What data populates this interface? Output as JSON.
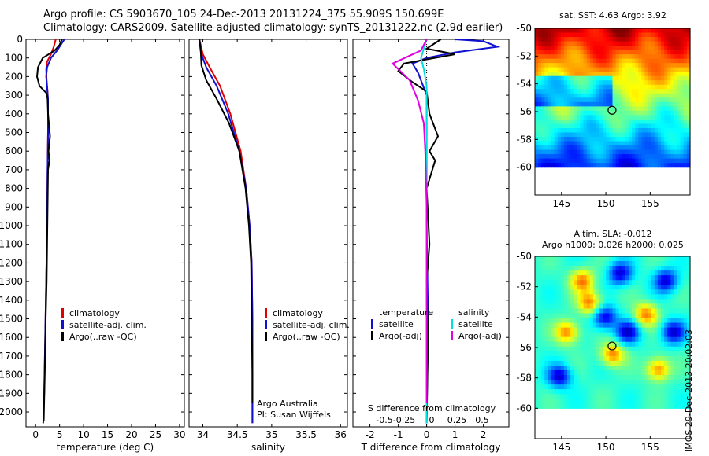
{
  "title_line1": "Argo profile: CS 5903670_105 24-Dec-2013 20131224_375 55.909S 150.699E",
  "title_line2": "Climatology: CARS2009. Satellite-adjusted climatology: synTS_20131222.nc (2.9d earlier)",
  "credit": "IMOS 29-Dec-2013 20:02:03",
  "colors": {
    "climatology": "#e00000",
    "satellite": "#1010d0",
    "argo": "#000000",
    "sat_salinity": "#00e0e0",
    "argo_salinity": "#e000e0"
  },
  "chart_data": [
    {
      "id": "temperature",
      "type": "line",
      "xlabel": "temperature (deg C)",
      "ylabel": "",
      "xlim": [
        -2,
        31
      ],
      "ylim": [
        2080,
        0
      ],
      "xticks": [
        0,
        5,
        10,
        15,
        20,
        25,
        30
      ],
      "yticks": [
        0,
        100,
        200,
        300,
        400,
        500,
        600,
        700,
        800,
        900,
        1000,
        1100,
        1200,
        1300,
        1400,
        1500,
        1600,
        1700,
        1800,
        1900,
        2000
      ],
      "legend": [
        "climatology",
        "satellite-adj. clim.",
        "Argo(..raw -QC)"
      ],
      "legend_position": "lower-right",
      "series": [
        {
          "name": "climatology",
          "color": "#e00000",
          "points": [
            [
              4.2,
              0
            ],
            [
              3.8,
              40
            ],
            [
              3.2,
              80
            ],
            [
              2.4,
              120
            ],
            [
              2.2,
              160
            ],
            [
              2.3,
              220
            ],
            [
              2.5,
              280
            ],
            [
              2.6,
              350
            ],
            [
              2.6,
              500
            ],
            [
              2.5,
              700
            ],
            [
              2.4,
              1000
            ],
            [
              2.2,
              1300
            ],
            [
              2.0,
              1600
            ],
            [
              1.8,
              1900
            ],
            [
              1.6,
              2060
            ]
          ]
        },
        {
          "name": "satellite-adj. clim.",
          "color": "#1010d0",
          "points": [
            [
              6.0,
              0
            ],
            [
              5.5,
              20
            ],
            [
              4.5,
              60
            ],
            [
              3.2,
              100
            ],
            [
              2.4,
              150
            ],
            [
              2.2,
              200
            ],
            [
              2.4,
              260
            ],
            [
              2.6,
              320
            ],
            [
              2.6,
              500
            ],
            [
              2.5,
              700
            ],
            [
              2.4,
              1000
            ],
            [
              2.2,
              1300
            ],
            [
              2.0,
              1600
            ],
            [
              1.8,
              1900
            ],
            [
              1.6,
              2060
            ]
          ]
        },
        {
          "name": "Argo(..raw -QC)",
          "color": "#000000",
          "points": [
            [
              5.5,
              0
            ],
            [
              5.0,
              30
            ],
            [
              4.0,
              60
            ],
            [
              1.5,
              100
            ],
            [
              0.5,
              150
            ],
            [
              0.3,
              200
            ],
            [
              0.8,
              250
            ],
            [
              2.3,
              290
            ],
            [
              2.5,
              320
            ],
            [
              2.6,
              400
            ],
            [
              3.0,
              520
            ],
            [
              2.7,
              600
            ],
            [
              2.9,
              650
            ],
            [
              2.6,
              700
            ],
            [
              2.5,
              900
            ],
            [
              2.4,
              1100
            ],
            [
              2.3,
              1300
            ],
            [
              2.1,
              1500
            ],
            [
              1.9,
              1800
            ],
            [
              1.7,
              2050
            ]
          ]
        }
      ]
    },
    {
      "id": "salinity",
      "type": "line",
      "xlabel": "salinity",
      "ylabel": "",
      "xlim": [
        33.8,
        36.1
      ],
      "ylim": [
        2080,
        0
      ],
      "xticks": [
        34,
        34.5,
        35,
        35.5,
        36
      ],
      "legend": [
        "climatology",
        "satellite-adj. clim.",
        "Argo(..raw -QC)"
      ],
      "legend_position": "lower-right",
      "annotation": [
        "Argo Australia",
        "PI: Susan Wijffels"
      ],
      "series": [
        {
          "name": "climatology",
          "color": "#e00000",
          "points": [
            [
              33.95,
              0
            ],
            [
              34.0,
              80
            ],
            [
              34.1,
              150
            ],
            [
              34.25,
              250
            ],
            [
              34.4,
              400
            ],
            [
              34.55,
              600
            ],
            [
              34.63,
              800
            ],
            [
              34.68,
              1000
            ],
            [
              34.71,
              1200
            ],
            [
              34.72,
              1500
            ],
            [
              34.72,
              1800
            ],
            [
              34.72,
              2060
            ]
          ]
        },
        {
          "name": "satellite-adj. clim.",
          "color": "#1010d0",
          "points": [
            [
              33.95,
              0
            ],
            [
              33.98,
              80
            ],
            [
              34.05,
              150
            ],
            [
              34.2,
              250
            ],
            [
              34.37,
              400
            ],
            [
              34.53,
              600
            ],
            [
              34.63,
              800
            ],
            [
              34.68,
              1000
            ],
            [
              34.71,
              1200
            ],
            [
              34.72,
              1500
            ],
            [
              34.72,
              1800
            ],
            [
              34.72,
              2060
            ]
          ]
        },
        {
          "name": "Argo(..raw -QC)",
          "color": "#000000",
          "points": [
            [
              33.95,
              0
            ],
            [
              33.97,
              70
            ],
            [
              33.98,
              140
            ],
            [
              34.05,
              220
            ],
            [
              34.2,
              320
            ],
            [
              34.38,
              450
            ],
            [
              34.53,
              600
            ],
            [
              34.62,
              800
            ],
            [
              34.67,
              1000
            ],
            [
              34.7,
              1200
            ],
            [
              34.71,
              1500
            ],
            [
              34.72,
              1800
            ],
            [
              34.72,
              1950
            ]
          ]
        }
      ]
    },
    {
      "id": "difference",
      "type": "line",
      "xlabel": "T difference from climatology",
      "xlabel_top": "S difference from climatology",
      "xlim": [
        -2.6,
        2.9
      ],
      "ylim": [
        2080,
        0
      ],
      "xticks": [
        -2,
        -1,
        0,
        1,
        2
      ],
      "xticks_top": [
        "-0.5",
        "-0.25",
        "0",
        "0.25",
        "0.5"
      ],
      "legend_temperature": [
        "temperature",
        "satellite",
        "Argo(-adj)"
      ],
      "legend_salinity": [
        "salinity",
        "satellite",
        "Argo(-adj)"
      ],
      "series": [
        {
          "name": "temperature satellite",
          "color": "#1010d0",
          "points": [
            [
              1.0,
              0
            ],
            [
              2.0,
              10
            ],
            [
              2.5,
              40
            ],
            [
              1.0,
              70
            ],
            [
              0.0,
              100
            ],
            [
              -0.5,
              130
            ],
            [
              -0.3,
              180
            ],
            [
              0.0,
              300
            ],
            [
              0.0,
              1000
            ],
            [
              0.05,
              1500
            ],
            [
              0.0,
              2060
            ]
          ]
        },
        {
          "name": "temperature Argo(-adj)",
          "color": "#000000",
          "points": [
            [
              0.5,
              0
            ],
            [
              0.0,
              50
            ],
            [
              1.0,
              80
            ],
            [
              -0.8,
              130
            ],
            [
              -1.0,
              170
            ],
            [
              -0.5,
              230
            ],
            [
              0.0,
              280
            ],
            [
              0.1,
              400
            ],
            [
              0.4,
              520
            ],
            [
              0.1,
              600
            ],
            [
              0.3,
              650
            ],
            [
              0.0,
              800
            ],
            [
              0.1,
              1100
            ],
            [
              0.0,
              1300
            ],
            [
              0.05,
              1600
            ],
            [
              0.0,
              2050
            ]
          ]
        },
        {
          "name": "salinity satellite",
          "color": "#00e0e0",
          "points": [
            [
              0.0,
              0
            ],
            [
              -0.1,
              50
            ],
            [
              -0.2,
              100
            ],
            [
              -0.1,
              160
            ],
            [
              0.0,
              250
            ],
            [
              0.0,
              1000
            ],
            [
              0.0,
              2060
            ]
          ]
        },
        {
          "name": "salinity Argo(-adj)",
          "color": "#e000e0",
          "points": [
            [
              0.0,
              0
            ],
            [
              -0.2,
              60
            ],
            [
              -1.2,
              130
            ],
            [
              -0.6,
              220
            ],
            [
              -0.3,
              330
            ],
            [
              -0.1,
              450
            ],
            [
              -0.05,
              600
            ],
            [
              0.0,
              900
            ],
            [
              0.0,
              1500
            ],
            [
              0.0,
              1950
            ]
          ]
        }
      ]
    },
    {
      "id": "sst_map",
      "type": "heatmap",
      "title": "sat. SST: 4.63 Argo: 3.92",
      "xticks": [
        145,
        150,
        155
      ],
      "yticks": [
        -50,
        -52,
        -54,
        -56,
        -58,
        -60
      ],
      "xlim": [
        142,
        159.5
      ],
      "ylim": [
        -62,
        -50
      ],
      "marker": [
        150.7,
        -55.9
      ]
    },
    {
      "id": "sla_map",
      "type": "heatmap",
      "title": "Altim. SLA: -0.012",
      "subtitle": "Argo h1000: 0.026 h2000: 0.025",
      "xticks": [
        145,
        150,
        155
      ],
      "yticks": [
        -50,
        -52,
        -54,
        -56,
        -58,
        -60
      ],
      "xlim": [
        142,
        159.5
      ],
      "ylim": [
        -62,
        -50
      ],
      "marker": [
        150.7,
        -55.9
      ]
    }
  ]
}
